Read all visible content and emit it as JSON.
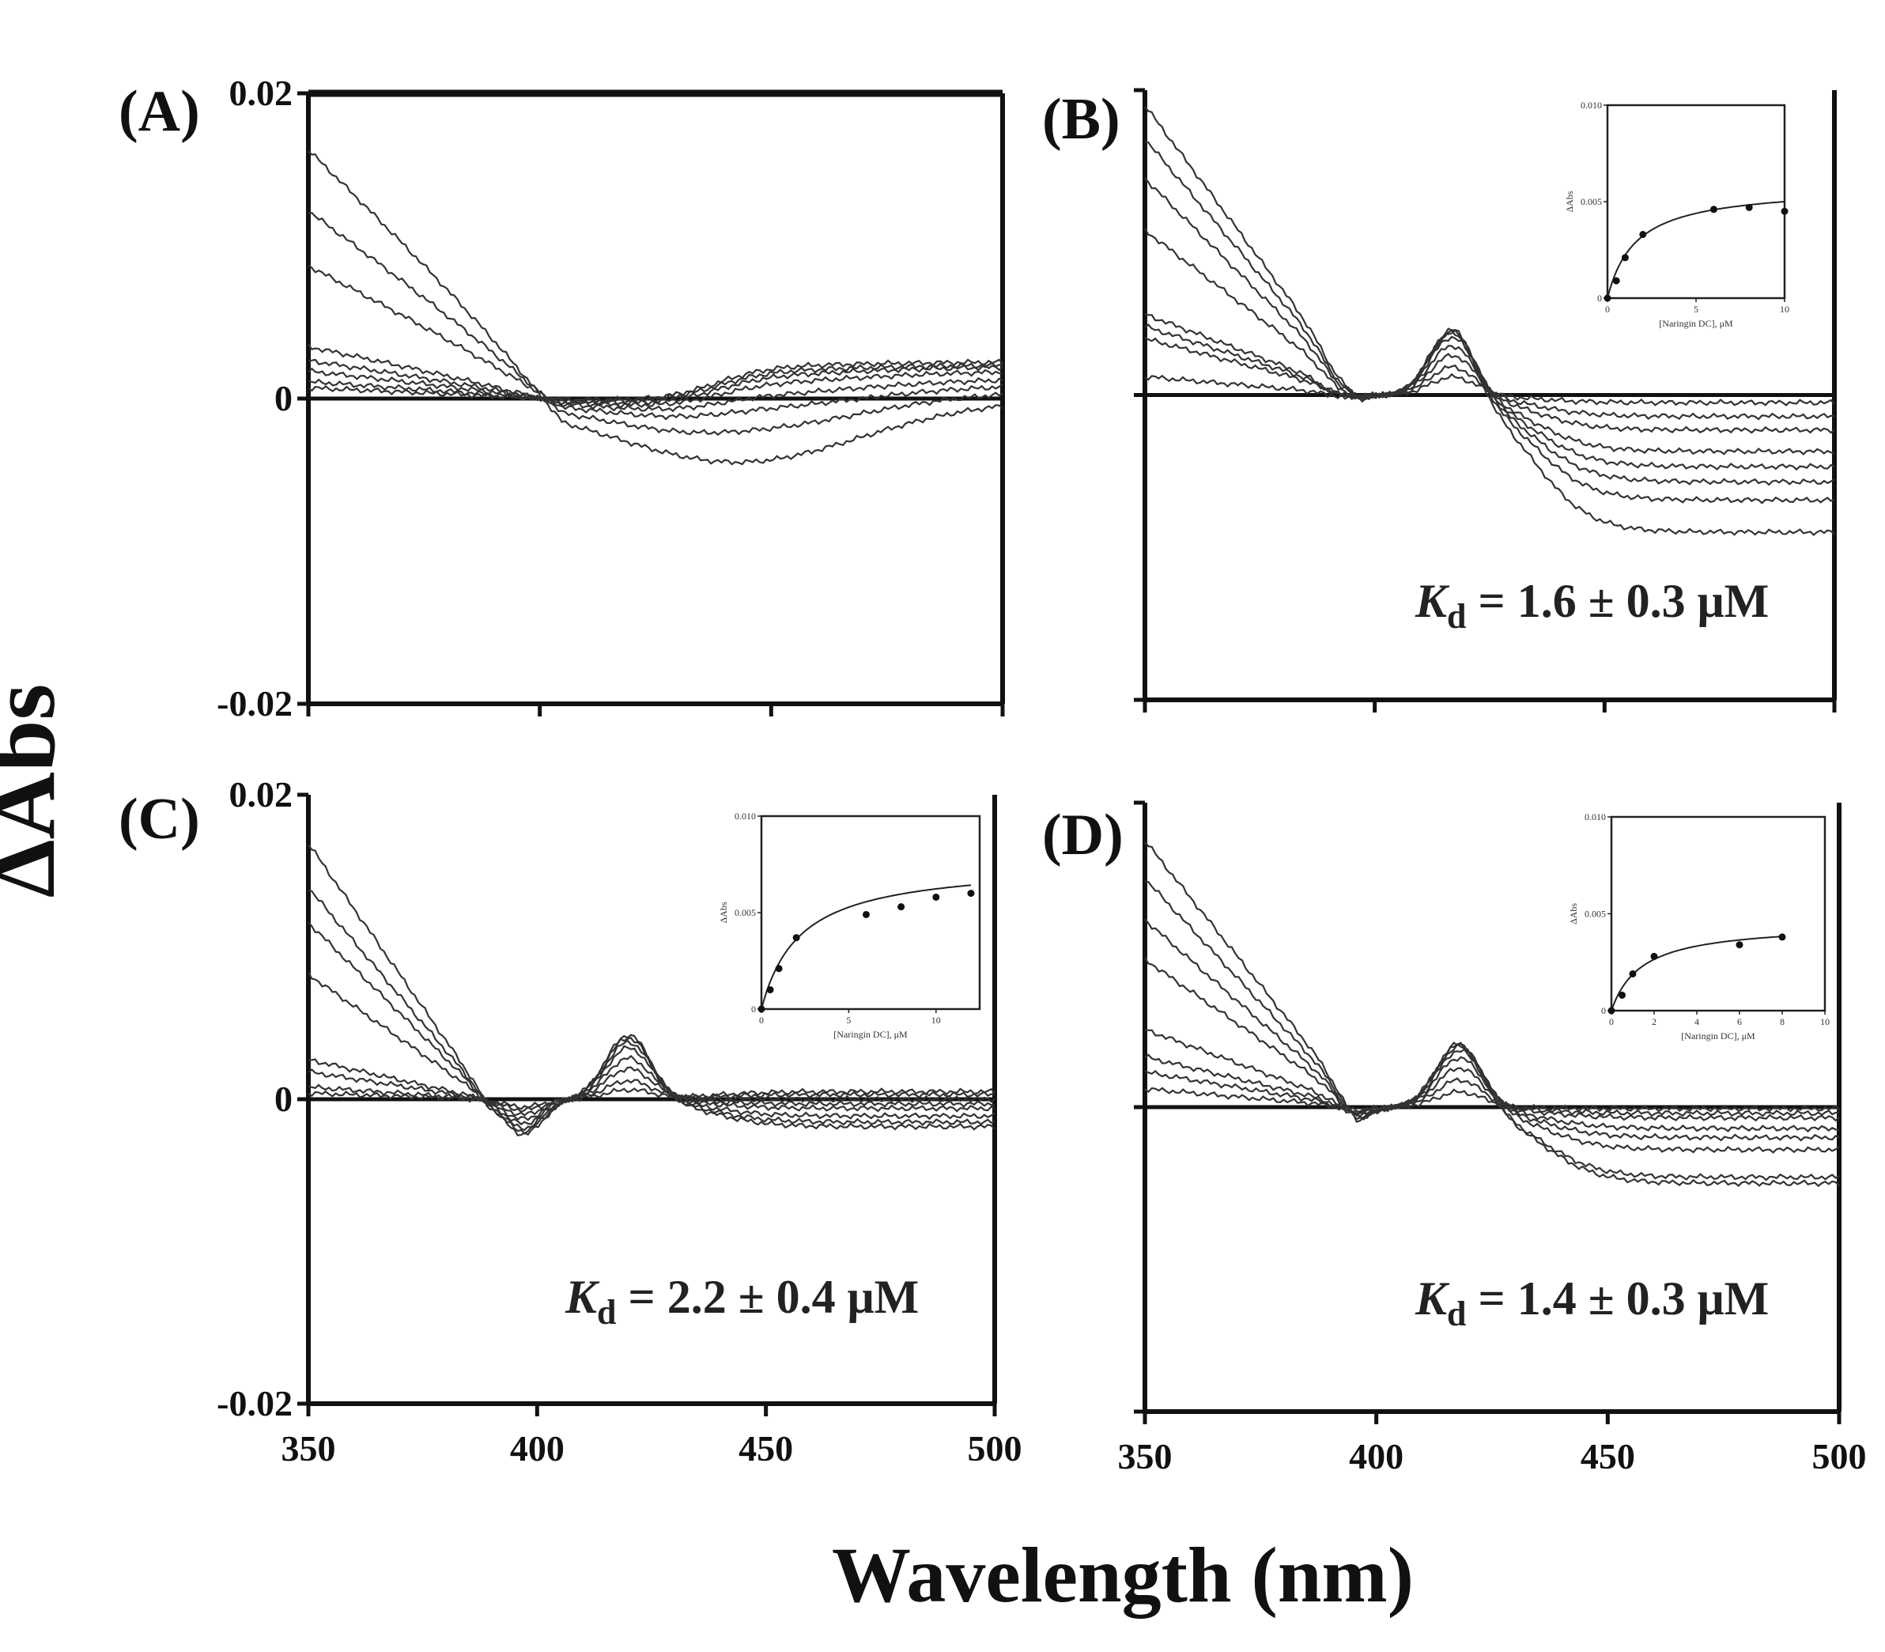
{
  "figure": {
    "ylabel": "ΔAbs",
    "xlabel": "Wavelength (nm)"
  },
  "chart_data": [
    {
      "id": "A",
      "type": "line",
      "label": "(A)",
      "xlim": [
        350,
        500
      ],
      "ylim": [
        -0.02,
        0.02
      ],
      "xticks": [
        350,
        400,
        450,
        500
      ],
      "xtick_labels_shown": false,
      "yticks": [
        -0.02,
        0,
        0.02
      ],
      "ytick_labels": [
        "-0.02",
        "0",
        "0.02"
      ],
      "spectra": {
        "a350": [
          0.0163,
          0.0123,
          0.0087,
          0.0034,
          0.0025,
          0.0018,
          0.0011,
          0.0007
        ],
        "cross1": 405,
        "b": [
          -0.0041,
          -0.0025,
          -0.0015,
          -0.001,
          -0.0007,
          -0.0005,
          -0.0003,
          -0.0002
        ],
        "c": [
          0.0,
          0.0,
          0.0,
          0.0,
          0.0,
          0.0,
          0.0,
          0.0
        ],
        "trough_center": 442,
        "trough_width": 38,
        "peak_center": 420,
        "peak_width": 9,
        "end": [
          -0.0001,
          0.0005,
          0.0009,
          0.0013,
          0.0018,
          0.0021,
          0.0022,
          0.0024
        ]
      },
      "kd": null,
      "inset": null
    },
    {
      "id": "B",
      "type": "line",
      "label": "(B)",
      "xlim": [
        350,
        500
      ],
      "ylim": [
        -0.02,
        0.02
      ],
      "xticks": [
        350,
        400,
        450,
        500
      ],
      "xtick_labels_shown": false,
      "yticks": [
        -0.02,
        0,
        0.02
      ],
      "ytick_labels": [],
      "spectra": {
        "a350": [
          0.019,
          0.0168,
          0.0142,
          0.0108,
          0.0053,
          0.0045,
          0.0037,
          0.0012
        ],
        "cross1": 397,
        "b": [
          -0.0008,
          -0.0008,
          -0.0007,
          -0.0006,
          -0.0005,
          -0.0004,
          -0.0003,
          -0.0002
        ],
        "c": [
          0.0045,
          0.0046,
          0.0044,
          0.004,
          0.0034,
          0.0027,
          0.0019,
          0.0012
        ],
        "trough_center": 392,
        "trough_width": 5,
        "peak_center": 417,
        "peak_width": 7,
        "end": [
          -0.009,
          -0.0069,
          -0.0057,
          -0.0047,
          -0.0037,
          -0.0023,
          -0.0014,
          -0.0005
        ]
      },
      "kd": {
        "symbol": "K",
        "subscript": "d",
        "text": " = 1.6 ± 0.3 μM"
      },
      "inset": {
        "xlim": [
          0,
          10
        ],
        "ylim": [
          0,
          0.01
        ],
        "xticks": [
          0,
          5,
          10
        ],
        "xtick_labels": [
          "0",
          "5",
          "10"
        ],
        "yticks": [
          0,
          0.005,
          0.01
        ],
        "ytick_labels": [
          "0",
          "0.005",
          "0.010"
        ],
        "xlabel": "[Naringin DC], μM",
        "ylabel": "ΔAbs",
        "points_x": [
          0,
          0.5,
          1,
          2,
          6,
          8,
          10
        ],
        "points_y": [
          0,
          0.0009,
          0.0021,
          0.0033,
          0.0046,
          0.0047,
          0.0045
        ],
        "fit_bmax": 0.0058,
        "fit_kd": 1.6
      }
    },
    {
      "id": "C",
      "type": "line",
      "label": "(C)",
      "xlim": [
        350,
        500
      ],
      "ylim": [
        -0.02,
        0.02
      ],
      "xticks": [
        350,
        400,
        450,
        500
      ],
      "xtick_labels": [
        "350",
        "400",
        "450",
        "500"
      ],
      "yticks": [
        -0.02,
        0,
        0.02
      ],
      "ytick_labels": [
        "-0.02",
        "0",
        "0.02"
      ],
      "spectra": {
        "a350": [
          0.0168,
          0.0139,
          0.0116,
          0.0082,
          0.0026,
          0.0018,
          0.0008,
          0.0004
        ],
        "cross1": 389,
        "b": [
          -0.0023,
          -0.0021,
          -0.0019,
          -0.0016,
          -0.0013,
          -0.001,
          -0.0007,
          -0.0005
        ],
        "c": [
          0.0043,
          0.0041,
          0.0038,
          0.0034,
          0.0027,
          0.002,
          0.0012,
          0.0006
        ],
        "trough_center": 397,
        "trough_width": 6,
        "peak_center": 420,
        "peak_width": 7,
        "end": [
          -0.0018,
          -0.0015,
          -0.0011,
          -0.0006,
          -0.0003,
          0.0,
          0.0003,
          0.0005
        ]
      },
      "kd": {
        "symbol": "K",
        "subscript": "d",
        "text": " = 2.2 ± 0.4 μM"
      },
      "inset": {
        "xlim": [
          0,
          12.5
        ],
        "ylim": [
          0,
          0.01
        ],
        "xticks": [
          0,
          5,
          10
        ],
        "xtick_labels": [
          "0",
          "5",
          "10"
        ],
        "yticks": [
          0,
          0.005,
          0.01
        ],
        "ytick_labels": [
          "0",
          "0.005",
          "0.010"
        ],
        "xlabel": "[Naringin DC], μM",
        "ylabel": "ΔAbs",
        "points_x": [
          0,
          0.5,
          1,
          2,
          6,
          8,
          10,
          12
        ],
        "points_y": [
          0,
          0.001,
          0.0021,
          0.0037,
          0.0049,
          0.0053,
          0.0058,
          0.006
        ],
        "fit_bmax": 0.0076,
        "fit_kd": 2.2
      }
    },
    {
      "id": "D",
      "type": "line",
      "label": "(D)",
      "xlim": [
        350,
        500
      ],
      "ylim": [
        -0.02,
        0.02
      ],
      "xticks": [
        350,
        400,
        450,
        500
      ],
      "xtick_labels": [
        "350",
        "400",
        "450",
        "500"
      ],
      "yticks": [
        -0.02,
        0,
        0.02
      ],
      "ytick_labels": [],
      "spectra": {
        "a350": [
          0.0175,
          0.015,
          0.0123,
          0.0097,
          0.0051,
          0.0033,
          0.0023,
          0.0012
        ],
        "cross1": 396,
        "b": [
          -0.0009,
          -0.0008,
          -0.0007,
          -0.0006,
          -0.0005,
          -0.0004,
          -0.0003,
          -0.0002
        ],
        "c": [
          0.0044,
          0.0043,
          0.0041,
          0.0038,
          0.0033,
          0.0026,
          0.0018,
          0.001
        ],
        "trough_center": 395,
        "trough_width": 5,
        "peak_center": 418,
        "peak_width": 7,
        "end": [
          -0.005,
          -0.0046,
          -0.0028,
          -0.002,
          -0.0014,
          -0.0007,
          -0.0004,
          -0.0001
        ]
      },
      "kd": {
        "symbol": "K",
        "subscript": "d",
        "text": " = 1.4 ± 0.3 μM"
      },
      "inset": {
        "xlim": [
          0,
          10
        ],
        "ylim": [
          0,
          0.01
        ],
        "xticks": [
          0,
          2,
          4,
          6,
          8,
          10
        ],
        "xtick_labels": [
          "0",
          "2",
          "4",
          "6",
          "8",
          "10"
        ],
        "yticks": [
          0,
          0.005,
          0.01
        ],
        "ytick_labels": [
          "0",
          "0.005",
          "0.010"
        ],
        "xlabel": "[Naringin DC], μM",
        "ylabel": "ΔAbs",
        "points_x": [
          0,
          0.5,
          1,
          2,
          6,
          8
        ],
        "points_y": [
          0,
          0.0008,
          0.0019,
          0.0028,
          0.0034,
          0.0038
        ],
        "fit_bmax": 0.0045,
        "fit_kd": 1.4
      }
    }
  ]
}
